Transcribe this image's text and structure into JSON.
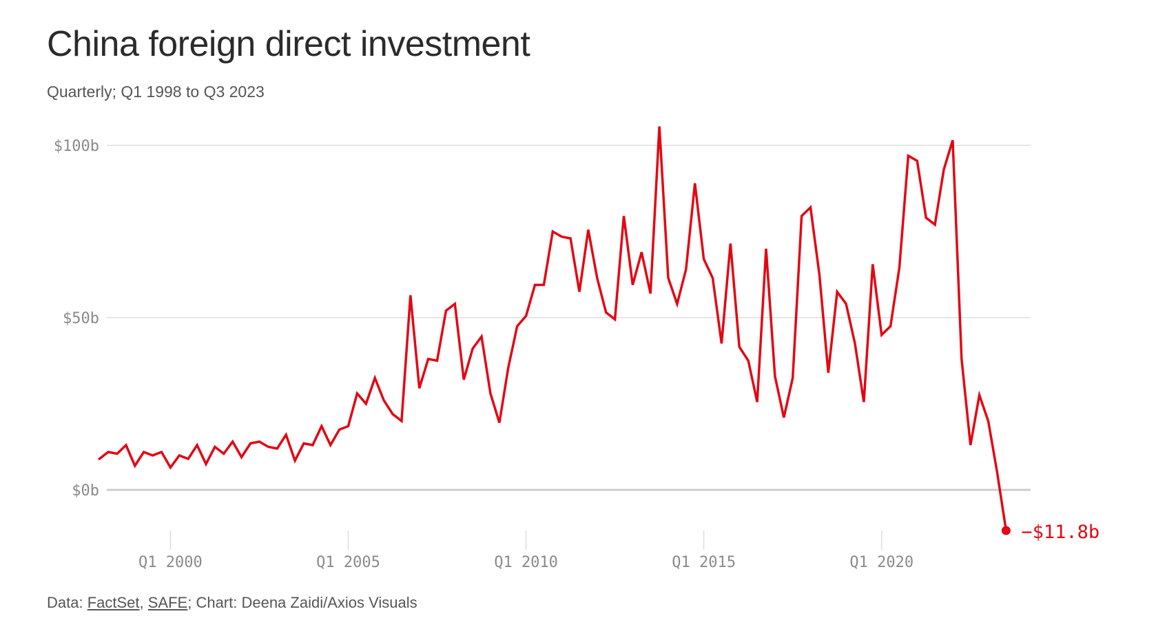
{
  "title": "China foreign direct investment",
  "subtitle": "Quarterly; Q1 1998 to Q3 2023",
  "footer": {
    "data_prefix": "Data: ",
    "source1": "FactSet",
    "sep1": ", ",
    "source2": "SAFE",
    "credit": "; Chart: Deena Zaidi/Axios Visuals"
  },
  "colors": {
    "line": "#e30613",
    "grid": "#dddddd",
    "zero_line": "#cccccc",
    "tick_text": "#8a8a8a"
  },
  "chart_data": {
    "type": "line",
    "title": "China foreign direct investment",
    "subtitle": "Quarterly; Q1 1998 to Q3 2023",
    "xlabel": "",
    "ylabel": "",
    "ylim": [
      -12,
      105
    ],
    "grid": true,
    "y_ticks": [
      {
        "value": 0,
        "label": "$0b"
      },
      {
        "value": 50,
        "label": "$50b"
      },
      {
        "value": 100,
        "label": "$100b"
      }
    ],
    "x_ticks": [
      {
        "value": 2000.0,
        "label": "Q1 2000"
      },
      {
        "value": 2005.0,
        "label": "Q1 2005"
      },
      {
        "value": 2010.0,
        "label": "Q1 2010"
      },
      {
        "value": 2015.0,
        "label": "Q1 2015"
      },
      {
        "value": 2020.0,
        "label": "Q1 2020"
      }
    ],
    "end_label": "−$11.8b",
    "series": [
      {
        "start": "Q1 1998",
        "values": [
          9,
          11,
          10.5,
          13,
          7,
          11,
          10,
          11,
          6.5,
          10,
          9,
          13,
          7.5,
          12.5,
          10.5,
          14,
          9.5,
          13.5,
          14,
          12.5,
          12,
          16,
          8.5,
          13.5,
          13,
          18.5,
          13,
          17.5,
          18.5,
          28,
          25,
          32.5,
          26,
          22,
          20,
          56.5,
          29.5,
          38,
          37.5,
          52,
          54,
          32,
          41,
          44.5,
          28,
          19.5,
          35.5,
          47.5,
          50.5,
          59.5,
          59.5,
          75,
          73.5,
          73,
          57.5,
          75.5,
          61.5,
          51.5,
          49.5,
          79.5,
          59.5,
          69,
          57,
          105.5,
          61.5,
          54,
          64,
          89,
          67,
          61.5,
          42.5,
          71.5,
          41.5,
          37.5,
          25.5,
          70,
          33,
          21,
          32.5,
          79.5,
          82,
          62.5,
          34,
          57.5,
          54,
          42.5,
          25.5,
          65.5,
          45,
          47.5,
          64.5,
          97,
          95.5,
          79,
          77,
          93,
          101.5,
          38,
          13,
          27.5,
          20,
          5,
          -11.8
        ]
      }
    ]
  }
}
